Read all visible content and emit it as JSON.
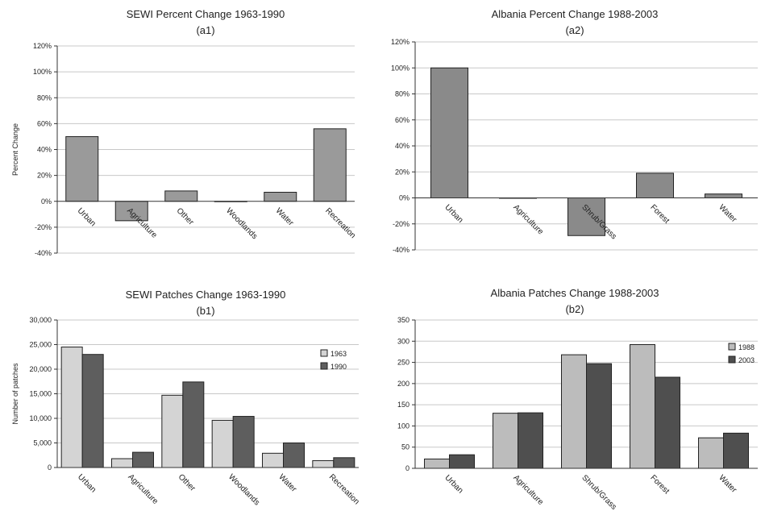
{
  "chart_data": [
    {
      "id": "a1",
      "type": "bar",
      "title": "SEWI Percent Change 1963-1990",
      "subtitle": "(a1)",
      "ylabel": "Percent Change",
      "ylim": [
        -40,
        120
      ],
      "yticks": [
        -40,
        -20,
        0,
        20,
        40,
        60,
        80,
        100,
        120
      ],
      "ytick_labels": [
        "-40%",
        "-20%",
        "0%",
        "20%",
        "40%",
        "60%",
        "80%",
        "100%",
        "120%"
      ],
      "grid": true,
      "categories": [
        "Urban",
        "Agriculture",
        "Other",
        "Woodlands",
        "Water",
        "Recreation"
      ],
      "series": [
        {
          "values": [
            50,
            -15,
            8,
            0,
            7,
            56
          ],
          "color": "#9a9a9a"
        }
      ]
    },
    {
      "id": "a2",
      "type": "bar",
      "title": "Albania Percent Change 1988-2003",
      "subtitle": "(a2)",
      "ylabel": "",
      "ylim": [
        -40,
        120
      ],
      "yticks": [
        -40,
        -20,
        0,
        20,
        40,
        60,
        80,
        100,
        120
      ],
      "ytick_labels": [
        "-40%",
        "-20%",
        "0%",
        "20%",
        "40%",
        "60%",
        "80%",
        "100%",
        "120%"
      ],
      "grid": true,
      "categories": [
        "Urban",
        "Agriculture",
        "Shrub/Grass",
        "Forest",
        "Water"
      ],
      "series": [
        {
          "values": [
            100,
            0,
            -29,
            19,
            3
          ],
          "color": "#8a8a8a"
        }
      ]
    },
    {
      "id": "b1",
      "type": "bar",
      "title": "SEWI Patches Change 1963-1990",
      "subtitle": "(b1)",
      "ylabel": "Number of patches",
      "ylim": [
        0,
        30000
      ],
      "yticks": [
        0,
        5000,
        10000,
        15000,
        20000,
        25000,
        30000
      ],
      "ytick_labels": [
        "0",
        "5,000",
        "10,000",
        "15,000",
        "20,000",
        "25,000",
        "30,000"
      ],
      "grid": true,
      "legend_position": "right",
      "categories": [
        "Urban",
        "Agriculture",
        "Other",
        "Woodlands",
        "Water",
        "Recreation"
      ],
      "series": [
        {
          "name": "1963",
          "values": [
            24500,
            1800,
            14700,
            9600,
            2900,
            1400
          ],
          "color": "#d4d4d4"
        },
        {
          "name": "1990",
          "values": [
            23000,
            3100,
            17400,
            10400,
            5000,
            2000
          ],
          "color": "#5e5e5e"
        }
      ]
    },
    {
      "id": "b2",
      "type": "bar",
      "title": "Albania Patches Change 1988-2003",
      "subtitle": "(b2)",
      "ylabel": "",
      "ylim": [
        0,
        350
      ],
      "yticks": [
        0,
        50,
        100,
        150,
        200,
        250,
        300,
        350
      ],
      "ytick_labels": [
        "0",
        "50",
        "100",
        "150",
        "200",
        "250",
        "300",
        "350"
      ],
      "grid": true,
      "legend_position": "right",
      "categories": [
        "Urban",
        "Agriculture",
        "Shrub/Grass",
        "Forest",
        "Water"
      ],
      "series": [
        {
          "name": "1988",
          "values": [
            22,
            130,
            268,
            292,
            72
          ],
          "color": "#bcbcbc"
        },
        {
          "name": "2003",
          "values": [
            32,
            131,
            247,
            215,
            83
          ],
          "color": "#4f4f4f"
        }
      ]
    }
  ]
}
